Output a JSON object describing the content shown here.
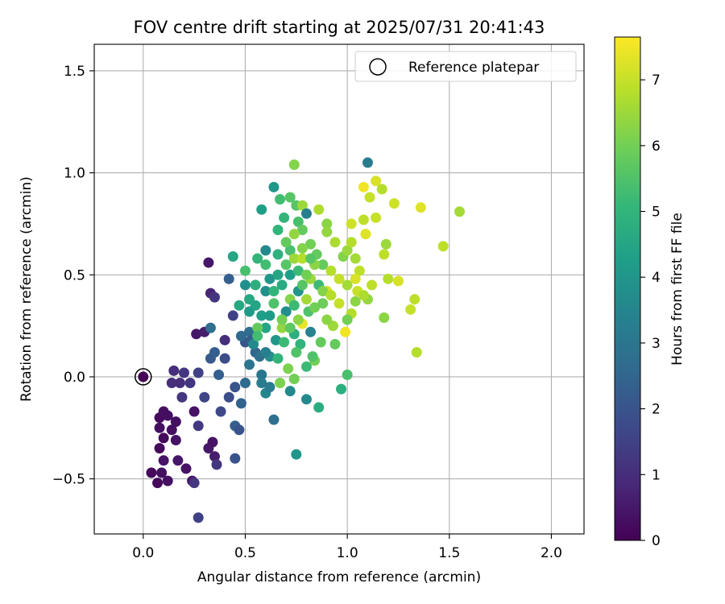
{
  "chart_data": {
    "type": "scatter",
    "title": "FOV centre drift starting at 2025/07/31 20:41:43",
    "xlabel": "Angular distance from reference (arcmin)",
    "ylabel": "Rotation from reference (arcmin)",
    "xlim": [
      -0.24,
      2.16
    ],
    "ylim": [
      -0.77,
      1.63
    ],
    "xticks": [
      0.0,
      0.5,
      1.0,
      1.5,
      2.0
    ],
    "xtick_labels": [
      "0.0",
      "0.5",
      "1.0",
      "1.5",
      "2.0"
    ],
    "yticks": [
      -0.5,
      0.0,
      0.5,
      1.0,
      1.5
    ],
    "ytick_labels": [
      "−0.5",
      "0.0",
      "0.5",
      "1.0",
      "1.5"
    ],
    "grid": true,
    "legend": {
      "position": "top-right",
      "entries": [
        {
          "label": "Reference platepar",
          "marker": "open-circle"
        }
      ]
    },
    "reference_point": {
      "x": 0.0,
      "y": 0.0
    },
    "colorbar": {
      "label": "Hours from first FF file",
      "range": [
        0,
        7.65
      ],
      "ticks": [
        0,
        1,
        2,
        3,
        4,
        5,
        6,
        7
      ],
      "tick_labels": [
        "0",
        "1",
        "2",
        "3",
        "4",
        "5",
        "6",
        "7"
      ],
      "colormap": [
        "#440154",
        "#482878",
        "#3e4989",
        "#31688e",
        "#26828e",
        "#1f9e89",
        "#35b779",
        "#6ece58",
        "#b5de2b",
        "#fde725"
      ]
    },
    "points": [
      {
        "x": 0.0,
        "y": 0.0,
        "h": 0.0
      },
      {
        "x": 0.04,
        "y": -0.47,
        "h": 0.2
      },
      {
        "x": 0.07,
        "y": -0.52,
        "h": 0.2
      },
      {
        "x": 0.09,
        "y": -0.47,
        "h": 0.3
      },
      {
        "x": 0.12,
        "y": -0.51,
        "h": 0.3
      },
      {
        "x": 0.08,
        "y": -0.35,
        "h": 0.2
      },
      {
        "x": 0.1,
        "y": -0.3,
        "h": 0.2
      },
      {
        "x": 0.08,
        "y": -0.25,
        "h": 0.3
      },
      {
        "x": 0.08,
        "y": -0.2,
        "h": 0.2
      },
      {
        "x": 0.1,
        "y": -0.17,
        "h": 0.3
      },
      {
        "x": 0.12,
        "y": -0.19,
        "h": 0.3
      },
      {
        "x": 0.1,
        "y": -0.41,
        "h": 0.4
      },
      {
        "x": 0.14,
        "y": -0.26,
        "h": 0.3
      },
      {
        "x": 0.16,
        "y": -0.22,
        "h": 0.3
      },
      {
        "x": 0.16,
        "y": -0.31,
        "h": 0.4
      },
      {
        "x": 0.17,
        "y": -0.41,
        "h": 0.5
      },
      {
        "x": 0.21,
        "y": -0.45,
        "h": 0.4
      },
      {
        "x": 0.24,
        "y": -0.51,
        "h": 0.5
      },
      {
        "x": 0.25,
        "y": -0.52,
        "h": 1.2
      },
      {
        "x": 0.27,
        "y": -0.69,
        "h": 1.5
      },
      {
        "x": 0.32,
        "y": -0.35,
        "h": 0.5
      },
      {
        "x": 0.34,
        "y": -0.32,
        "h": 0.4
      },
      {
        "x": 0.35,
        "y": -0.39,
        "h": 0.6
      },
      {
        "x": 0.36,
        "y": -0.43,
        "h": 1.2
      },
      {
        "x": 0.25,
        "y": -0.17,
        "h": 0.4
      },
      {
        "x": 0.27,
        "y": -0.24,
        "h": 1.3
      },
      {
        "x": 0.19,
        "y": -0.1,
        "h": 1.2
      },
      {
        "x": 0.14,
        "y": -0.03,
        "h": 1.0
      },
      {
        "x": 0.15,
        "y": 0.03,
        "h": 1.0
      },
      {
        "x": 0.18,
        "y": -0.03,
        "h": 1.0
      },
      {
        "x": 0.2,
        "y": 0.02,
        "h": 1.2
      },
      {
        "x": 0.23,
        "y": -0.03,
        "h": 1.2
      },
      {
        "x": 0.27,
        "y": 0.02,
        "h": 1.5
      },
      {
        "x": 0.3,
        "y": -0.1,
        "h": 1.6
      },
      {
        "x": 0.26,
        "y": 0.21,
        "h": 0.5
      },
      {
        "x": 0.3,
        "y": 0.22,
        "h": 0.6
      },
      {
        "x": 0.32,
        "y": 0.56,
        "h": 0.5
      },
      {
        "x": 0.33,
        "y": 0.41,
        "h": 0.8
      },
      {
        "x": 0.35,
        "y": 0.39,
        "h": 1.2
      },
      {
        "x": 0.33,
        "y": 0.24,
        "h": 2.8
      },
      {
        "x": 0.33,
        "y": 0.09,
        "h": 2.2
      },
      {
        "x": 0.35,
        "y": 0.12,
        "h": 2.3
      },
      {
        "x": 0.37,
        "y": 0.01,
        "h": 2.3
      },
      {
        "x": 0.38,
        "y": -0.17,
        "h": 1.7
      },
      {
        "x": 0.4,
        "y": 0.18,
        "h": 1.0
      },
      {
        "x": 0.4,
        "y": 0.09,
        "h": 1.8
      },
      {
        "x": 0.42,
        "y": 0.48,
        "h": 2.3
      },
      {
        "x": 0.44,
        "y": 0.3,
        "h": 1.5
      },
      {
        "x": 0.45,
        "y": -0.24,
        "h": 2.3
      },
      {
        "x": 0.45,
        "y": -0.4,
        "h": 2.0
      },
      {
        "x": 0.47,
        "y": -0.26,
        "h": 2.0
      },
      {
        "x": 0.44,
        "y": 0.59,
        "h": 4.5
      },
      {
        "x": 0.47,
        "y": 0.35,
        "h": 4.6
      },
      {
        "x": 0.42,
        "y": -0.1,
        "h": 1.8
      },
      {
        "x": 0.45,
        "y": -0.05,
        "h": 2.0
      },
      {
        "x": 0.48,
        "y": -0.13,
        "h": 2.4
      },
      {
        "x": 0.5,
        "y": -0.03,
        "h": 2.6
      },
      {
        "x": 0.52,
        "y": 0.06,
        "h": 3.0
      },
      {
        "x": 0.5,
        "y": 0.17,
        "h": 2.0
      },
      {
        "x": 0.52,
        "y": 0.22,
        "h": 2.8
      },
      {
        "x": 0.53,
        "y": 0.18,
        "h": 2.2
      },
      {
        "x": 0.55,
        "y": 0.12,
        "h": 2.5
      },
      {
        "x": 0.57,
        "y": 0.1,
        "h": 2.8
      },
      {
        "x": 0.58,
        "y": 0.01,
        "h": 3.0
      },
      {
        "x": 0.58,
        "y": -0.03,
        "h": 3.2
      },
      {
        "x": 0.6,
        "y": -0.08,
        "h": 3.5
      },
      {
        "x": 0.62,
        "y": 0.1,
        "h": 3.8
      },
      {
        "x": 0.62,
        "y": -0.05,
        "h": 3.2
      },
      {
        "x": 0.64,
        "y": -0.21,
        "h": 2.8
      },
      {
        "x": 0.65,
        "y": 0.18,
        "h": 4.0
      },
      {
        "x": 0.58,
        "y": 0.3,
        "h": 4.3
      },
      {
        "x": 0.55,
        "y": 0.35,
        "h": 4.5
      },
      {
        "x": 0.6,
        "y": 0.42,
        "h": 3.8
      },
      {
        "x": 0.62,
        "y": 0.48,
        "h": 4.0
      },
      {
        "x": 0.55,
        "y": 0.45,
        "h": 4.8
      },
      {
        "x": 0.5,
        "y": 0.45,
        "h": 3.8
      },
      {
        "x": 0.5,
        "y": 0.52,
        "h": 5.4
      },
      {
        "x": 0.52,
        "y": 0.38,
        "h": 4.6
      },
      {
        "x": 0.56,
        "y": 0.58,
        "h": 5.0
      },
      {
        "x": 0.58,
        "y": 0.82,
        "h": 4.3
      },
      {
        "x": 0.6,
        "y": 0.62,
        "h": 3.6
      },
      {
        "x": 0.64,
        "y": 0.93,
        "h": 4.0
      },
      {
        "x": 0.66,
        "y": 0.72,
        "h": 5.0
      },
      {
        "x": 0.67,
        "y": 0.87,
        "h": 5.3
      },
      {
        "x": 0.69,
        "y": 0.78,
        "h": 5.0
      },
      {
        "x": 0.72,
        "y": 0.88,
        "h": 5.6
      },
      {
        "x": 0.72,
        "y": 0.62,
        "h": 5.4
      },
      {
        "x": 0.74,
        "y": 1.04,
        "h": 6.2
      },
      {
        "x": 0.75,
        "y": 0.84,
        "h": 5.6
      },
      {
        "x": 0.76,
        "y": 0.76,
        "h": 5.4
      },
      {
        "x": 0.78,
        "y": 0.72,
        "h": 5.8
      },
      {
        "x": 0.78,
        "y": 0.84,
        "h": 6.5
      },
      {
        "x": 0.8,
        "y": 0.8,
        "h": 3.3
      },
      {
        "x": 0.82,
        "y": 0.65,
        "h": 6.0
      },
      {
        "x": 0.85,
        "y": 0.6,
        "h": 5.8
      },
      {
        "x": 0.86,
        "y": 0.82,
        "h": 6.7
      },
      {
        "x": 0.9,
        "y": 0.75,
        "h": 6.3
      },
      {
        "x": 0.9,
        "y": 0.71,
        "h": 6.4
      },
      {
        "x": 0.88,
        "y": 0.55,
        "h": 5.8
      },
      {
        "x": 0.92,
        "y": 0.52,
        "h": 6.8
      },
      {
        "x": 0.94,
        "y": 0.66,
        "h": 6.7
      },
      {
        "x": 0.96,
        "y": 0.48,
        "h": 7.0
      },
      {
        "x": 0.98,
        "y": 0.59,
        "h": 6.2
      },
      {
        "x": 1.0,
        "y": 0.62,
        "h": 6.5
      },
      {
        "x": 1.02,
        "y": 0.75,
        "h": 7.1
      },
      {
        "x": 1.02,
        "y": 0.66,
        "h": 6.8
      },
      {
        "x": 1.04,
        "y": 0.58,
        "h": 6.6
      },
      {
        "x": 1.06,
        "y": 0.52,
        "h": 6.9
      },
      {
        "x": 1.08,
        "y": 0.77,
        "h": 6.9
      },
      {
        "x": 1.08,
        "y": 0.93,
        "h": 7.5
      },
      {
        "x": 1.09,
        "y": 0.7,
        "h": 7.3
      },
      {
        "x": 1.1,
        "y": 1.05,
        "h": 3.2
      },
      {
        "x": 1.11,
        "y": 0.88,
        "h": 7.0
      },
      {
        "x": 1.14,
        "y": 0.96,
        "h": 7.2
      },
      {
        "x": 1.14,
        "y": 0.78,
        "h": 7.0
      },
      {
        "x": 1.17,
        "y": 0.92,
        "h": 6.8
      },
      {
        "x": 1.18,
        "y": 0.6,
        "h": 6.9
      },
      {
        "x": 1.19,
        "y": 0.65,
        "h": 6.5
      },
      {
        "x": 1.2,
        "y": 0.48,
        "h": 6.8
      },
      {
        "x": 1.23,
        "y": 0.85,
        "h": 7.1
      },
      {
        "x": 1.25,
        "y": 0.47,
        "h": 7.2
      },
      {
        "x": 1.31,
        "y": 0.33,
        "h": 7.0
      },
      {
        "x": 1.33,
        "y": 0.38,
        "h": 6.9
      },
      {
        "x": 1.34,
        "y": 0.12,
        "h": 6.8
      },
      {
        "x": 1.36,
        "y": 0.83,
        "h": 7.3
      },
      {
        "x": 1.47,
        "y": 0.64,
        "h": 6.9
      },
      {
        "x": 1.55,
        "y": 0.81,
        "h": 6.6
      },
      {
        "x": 1.18,
        "y": 0.29,
        "h": 6.3
      },
      {
        "x": 1.12,
        "y": 0.45,
        "h": 6.9
      },
      {
        "x": 1.1,
        "y": 0.38,
        "h": 6.4
      },
      {
        "x": 1.05,
        "y": 0.42,
        "h": 7.0
      },
      {
        "x": 1.04,
        "y": 0.37,
        "h": 6.3
      },
      {
        "x": 1.02,
        "y": 0.31,
        "h": 6.8
      },
      {
        "x": 1.0,
        "y": 0.28,
        "h": 6.0
      },
      {
        "x": 0.99,
        "y": 0.22,
        "h": 7.5
      },
      {
        "x": 1.0,
        "y": 0.01,
        "h": 5.4
      },
      {
        "x": 0.97,
        "y": -0.06,
        "h": 4.8
      },
      {
        "x": 0.94,
        "y": 0.16,
        "h": 5.8
      },
      {
        "x": 0.93,
        "y": 0.25,
        "h": 6.5
      },
      {
        "x": 0.9,
        "y": 0.28,
        "h": 6.3
      },
      {
        "x": 0.9,
        "y": 0.42,
        "h": 7.2
      },
      {
        "x": 0.87,
        "y": 0.17,
        "h": 5.8
      },
      {
        "x": 0.86,
        "y": -0.15,
        "h": 4.7
      },
      {
        "x": 0.84,
        "y": 0.08,
        "h": 6.0
      },
      {
        "x": 0.83,
        "y": 0.1,
        "h": 5.5
      },
      {
        "x": 0.82,
        "y": 0.22,
        "h": 3.4
      },
      {
        "x": 0.81,
        "y": 0.32,
        "h": 5.5
      },
      {
        "x": 0.8,
        "y": -0.11,
        "h": 3.6
      },
      {
        "x": 0.8,
        "y": 0.05,
        "h": 5.2
      },
      {
        "x": 0.78,
        "y": 0.26,
        "h": 7.4
      },
      {
        "x": 0.77,
        "y": 0.16,
        "h": 5.0
      },
      {
        "x": 0.75,
        "y": -0.38,
        "h": 4.0
      },
      {
        "x": 0.75,
        "y": 0.12,
        "h": 5.5
      },
      {
        "x": 0.74,
        "y": 0.21,
        "h": 4.8
      },
      {
        "x": 0.74,
        "y": -0.01,
        "h": 6.0
      },
      {
        "x": 0.72,
        "y": -0.07,
        "h": 3.6
      },
      {
        "x": 0.71,
        "y": 0.04,
        "h": 6.1
      },
      {
        "x": 0.69,
        "y": 0.17,
        "h": 5.2
      },
      {
        "x": 0.68,
        "y": 0.24,
        "h": 6.4
      },
      {
        "x": 0.67,
        "y": -0.03,
        "h": 6.1
      },
      {
        "x": 0.66,
        "y": 0.09,
        "h": 5.0
      },
      {
        "x": 0.7,
        "y": 0.32,
        "h": 3.8
      },
      {
        "x": 0.72,
        "y": 0.38,
        "h": 6.2
      },
      {
        "x": 0.74,
        "y": 0.35,
        "h": 5.2
      },
      {
        "x": 0.76,
        "y": 0.42,
        "h": 4.0
      },
      {
        "x": 0.78,
        "y": 0.45,
        "h": 5.6
      },
      {
        "x": 0.8,
        "y": 0.38,
        "h": 6.6
      },
      {
        "x": 0.82,
        "y": 0.48,
        "h": 6.5
      },
      {
        "x": 0.84,
        "y": 0.34,
        "h": 6.0
      },
      {
        "x": 0.86,
        "y": 0.45,
        "h": 5.2
      },
      {
        "x": 0.88,
        "y": 0.42,
        "h": 6.2
      },
      {
        "x": 0.7,
        "y": 0.55,
        "h": 5.6
      },
      {
        "x": 0.72,
        "y": 0.5,
        "h": 4.3
      },
      {
        "x": 0.74,
        "y": 0.58,
        "h": 6.5
      },
      {
        "x": 0.76,
        "y": 0.52,
        "h": 5.2
      },
      {
        "x": 0.78,
        "y": 0.58,
        "h": 6.8
      },
      {
        "x": 0.66,
        "y": 0.5,
        "h": 4.5
      },
      {
        "x": 0.64,
        "y": 0.42,
        "h": 5.0
      },
      {
        "x": 0.68,
        "y": 0.45,
        "h": 4.7
      },
      {
        "x": 0.62,
        "y": 0.3,
        "h": 4.2
      },
      {
        "x": 0.6,
        "y": 0.24,
        "h": 4.5
      },
      {
        "x": 0.56,
        "y": 0.24,
        "h": 5.8
      },
      {
        "x": 0.54,
        "y": 0.16,
        "h": 3.6
      },
      {
        "x": 0.6,
        "y": 0.12,
        "h": 3.3
      },
      {
        "x": 0.56,
        "y": 0.2,
        "h": 5.3
      },
      {
        "x": 0.64,
        "y": 0.36,
        "h": 5.5
      },
      {
        "x": 0.68,
        "y": 0.28,
        "h": 6.0
      },
      {
        "x": 0.72,
        "y": 0.24,
        "h": 5.7
      },
      {
        "x": 0.76,
        "y": 0.28,
        "h": 6.3
      },
      {
        "x": 0.8,
        "y": 0.5,
        "h": 6.0
      },
      {
        "x": 0.84,
        "y": 0.55,
        "h": 6.3
      },
      {
        "x": 0.88,
        "y": 0.36,
        "h": 5.9
      },
      {
        "x": 0.92,
        "y": 0.4,
        "h": 6.8
      },
      {
        "x": 0.96,
        "y": 0.36,
        "h": 7.0
      },
      {
        "x": 1.0,
        "y": 0.45,
        "h": 6.6
      },
      {
        "x": 1.04,
        "y": 0.48,
        "h": 7.2
      },
      {
        "x": 1.08,
        "y": 0.4,
        "h": 6.7
      },
      {
        "x": 0.7,
        "y": 0.66,
        "h": 5.8
      },
      {
        "x": 0.74,
        "y": 0.7,
        "h": 6.4
      },
      {
        "x": 0.78,
        "y": 0.63,
        "h": 6.2
      },
      {
        "x": 0.82,
        "y": 0.58,
        "h": 5.6
      },
      {
        "x": 0.6,
        "y": 0.55,
        "h": 5.3
      },
      {
        "x": 0.66,
        "y": 0.6,
        "h": 4.9
      },
      {
        "x": 0.52,
        "y": 0.32,
        "h": 4.2
      },
      {
        "x": 0.48,
        "y": 0.2,
        "h": 2.6
      }
    ]
  }
}
